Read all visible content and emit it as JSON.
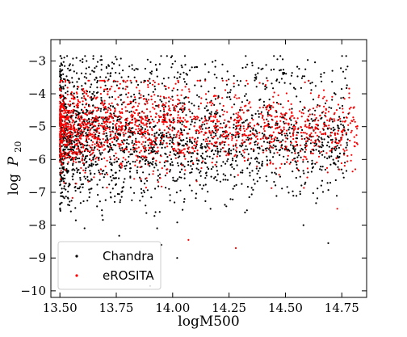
{
  "chart_data": {
    "type": "scatter",
    "xlabel": "logM500",
    "ylabel_main": "log",
    "ylabel_var": "P",
    "ylabel_sub": "20",
    "xlim": [
      13.46,
      14.86
    ],
    "ylim": [
      -10.2,
      -2.35
    ],
    "x_ticks": [
      13.5,
      13.75,
      14.0,
      14.25,
      14.5,
      14.75
    ],
    "x_tick_labels": [
      "13.50",
      "13.75",
      "14.00",
      "14.25",
      "14.50",
      "14.75"
    ],
    "y_ticks": [
      -3,
      -4,
      -5,
      -6,
      -7,
      -8,
      -9,
      -10
    ],
    "y_tick_labels": [
      "−3",
      "−4",
      "−5",
      "−6",
      "−7",
      "−8",
      "−9",
      "−10"
    ],
    "grid": false,
    "legend_position": "lower-left",
    "series": [
      {
        "name": "Chandra",
        "color": "#000000",
        "count": 2200,
        "x_range": [
          13.5,
          14.78
        ],
        "y_range": [
          -9.85,
          -2.85
        ],
        "y_center": -5.5,
        "outliers": [
          [
            13.9,
            -9.85
          ],
          [
            14.02,
            -9.0
          ],
          [
            14.69,
            -8.55
          ],
          [
            14.58,
            -8.0
          ],
          [
            13.95,
            -8.6
          ]
        ]
      },
      {
        "name": "eROSITA",
        "color": "#ff0000",
        "count": 1600,
        "x_range": [
          13.5,
          14.82
        ],
        "y_range": [
          -8.8,
          -3.6
        ],
        "y_center": -5.0,
        "outliers": [
          [
            14.07,
            -8.45
          ],
          [
            14.28,
            -8.7
          ],
          [
            14.81,
            -6.3
          ],
          [
            14.73,
            -7.5
          ]
        ]
      }
    ]
  }
}
